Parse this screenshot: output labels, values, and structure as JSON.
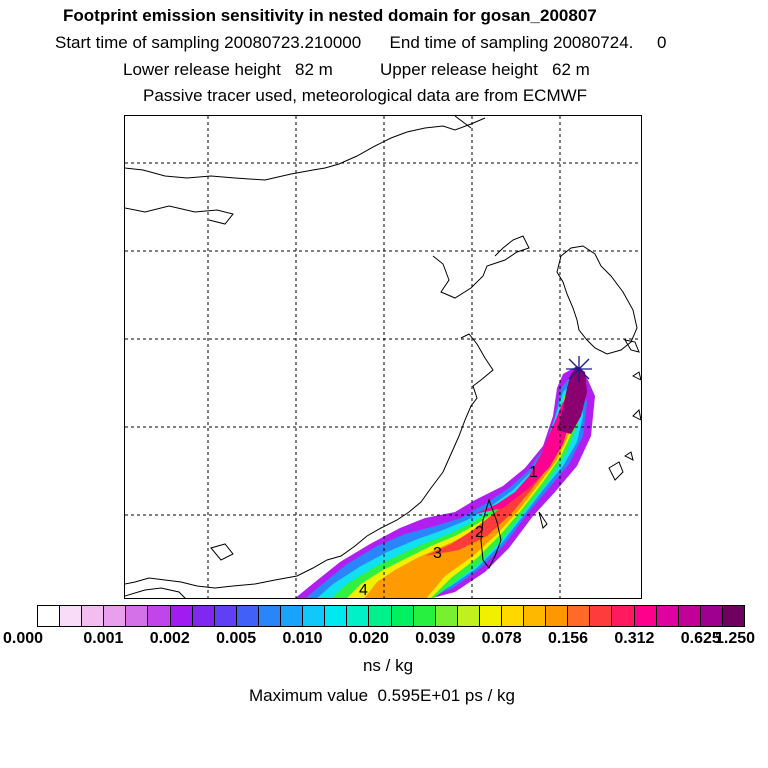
{
  "header": {
    "title": "Footprint emission sensitivity in nested domain for gosan_200807",
    "sampling_line": "Start time of sampling 20080723.210000      End time of sampling 20080724.     0",
    "release_line": "Lower release height   82 m          Upper release height   62 m",
    "tracer_line": "Passive tracer used, meteorological data are from ECMWF"
  },
  "map": {
    "station": "gosan",
    "station_marker": "star-icon",
    "day_labels": [
      "1",
      "2",
      "3",
      "4"
    ]
  },
  "colorbar": {
    "colors": [
      "#ffffff",
      "#f8dcf8",
      "#f2bef2",
      "#e8a0ec",
      "#d470e8",
      "#c046ec",
      "#a01cf0",
      "#8028f2",
      "#6040f4",
      "#4060f8",
      "#2a84fa",
      "#18a4fc",
      "#10c8fa",
      "#00e8f0",
      "#00f0c8",
      "#00f08c",
      "#00f060",
      "#28f040",
      "#78f030",
      "#c0f020",
      "#f0f000",
      "#ffd800",
      "#ffb800",
      "#ff9800",
      "#ff6a28",
      "#ff3c3c",
      "#ff1a60",
      "#ff008c",
      "#e000a0",
      "#c00098",
      "#a00090",
      "#700060"
    ],
    "tick_labels": [
      "0.000",
      "0.001",
      "0.002",
      "0.005",
      "0.010",
      "0.020",
      "0.039",
      "0.078",
      "0.156",
      "0.312",
      "0.625",
      "1.250"
    ],
    "units": "ns / kg"
  },
  "footer": {
    "max_value_text": "Maximum value  0.595E+01 ps / kg"
  }
}
